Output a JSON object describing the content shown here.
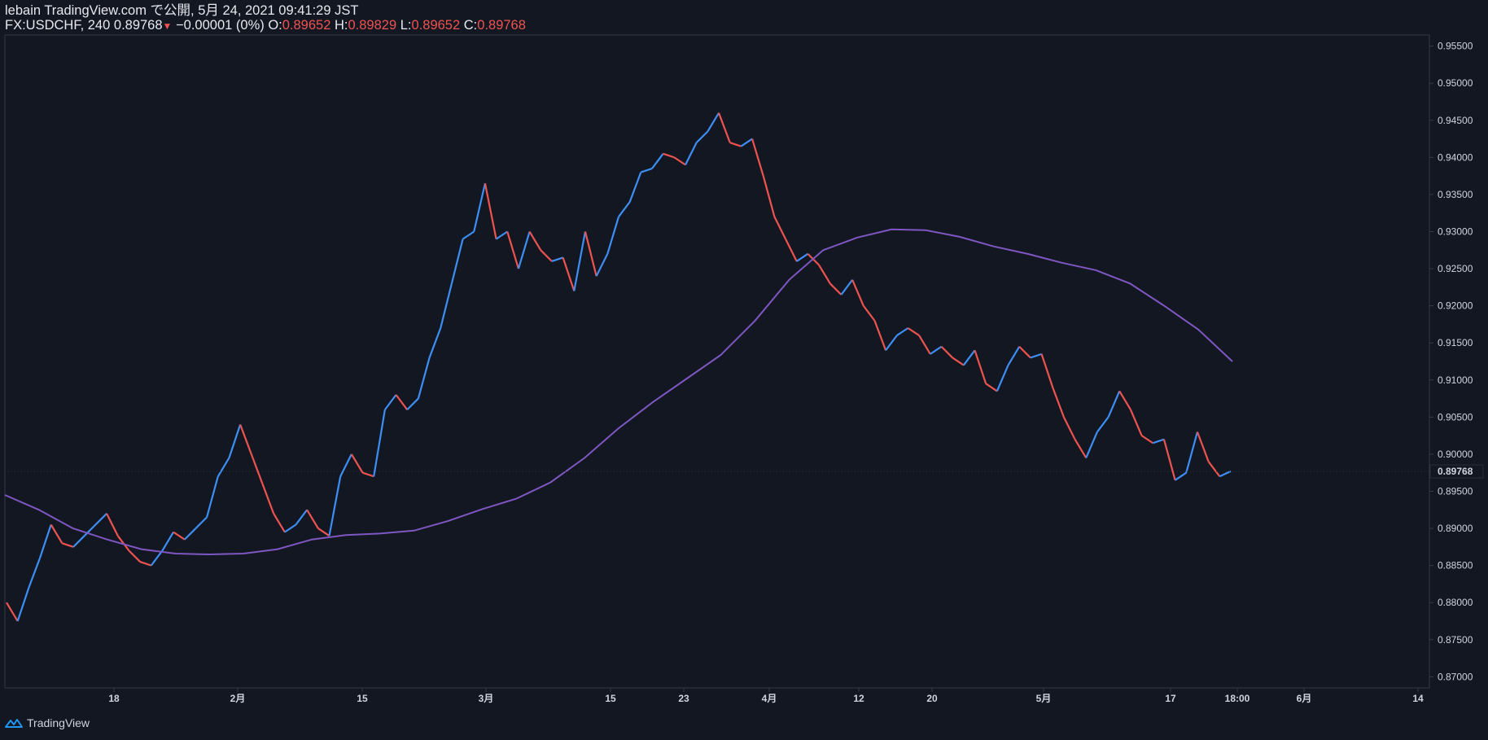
{
  "header": {
    "line1": "lebain TradingView.com で公開, 5月 24, 2021 09:41:29 JST",
    "symbol": "FX:USDCHF, 240",
    "last": "0.89768",
    "change": "−0.00001 (0%)",
    "o_label": "O:",
    "o_value": "0.89652",
    "h_label": "H:",
    "h_value": "0.89829",
    "l_label": "L:",
    "l_value": "0.89652",
    "c_label": "C:",
    "c_value": "0.89768"
  },
  "footer": {
    "brand": "TradingView"
  },
  "colors": {
    "background": "#131722",
    "up": "#2962ff",
    "up_alt": "#3d8ff5",
    "down": "#ef5350",
    "ma": "#7e57c2",
    "grid": "#363a45",
    "text": "#d1d4dc"
  },
  "chart_data": {
    "type": "line",
    "title": "",
    "series": [
      {
        "name": "",
        "values": [
          0.88,
          0.8775,
          0.882,
          0.886,
          0.8905,
          0.888,
          0.8875,
          0.889,
          0.8905,
          0.892,
          0.889,
          0.887,
          0.8855,
          0.885,
          0.887,
          0.8895,
          0.8885,
          0.89,
          0.8915,
          0.897,
          0.8995,
          0.904,
          0.9,
          0.896,
          0.892,
          0.8895,
          0.8905,
          0.8925,
          0.89,
          0.889,
          0.897,
          0.9,
          0.8975,
          0.897,
          0.906,
          0.908,
          0.906,
          0.9075,
          0.913,
          0.917,
          0.923,
          0.929,
          0.93,
          0.9365,
          0.929,
          0.93,
          0.925,
          0.93,
          0.9275,
          0.926,
          0.9265,
          0.922,
          0.93,
          0.924,
          0.927,
          0.932,
          0.934,
          0.938,
          0.9385,
          0.9405,
          0.94,
          0.939,
          0.942,
          0.9435,
          0.946,
          0.942,
          0.9415,
          0.9425,
          0.9375,
          0.932,
          0.929,
          0.926,
          0.927,
          0.9255,
          0.923,
          0.9215,
          0.9235,
          0.92,
          0.918,
          0.914,
          0.916,
          0.917,
          0.916,
          0.9135,
          0.9145,
          0.913,
          0.912,
          0.914,
          0.9095,
          0.9085,
          0.912,
          0.9145,
          0.913,
          0.9135,
          0.909,
          0.905,
          0.902,
          0.8995,
          0.903,
          0.905,
          0.9085,
          0.906,
          0.9025,
          0.9015,
          0.902,
          0.8965,
          0.8975,
          0.903,
          0.899,
          0.897,
          0.8977
        ]
      },
      {
        "name": "",
        "values": [
          0.8945,
          0.8925,
          0.89,
          0.8885,
          0.8872,
          0.8866,
          0.8865,
          0.8866,
          0.8872,
          0.8885,
          0.8891,
          0.8893,
          0.8897,
          0.891,
          0.8926,
          0.894,
          0.8962,
          0.8995,
          0.9035,
          0.907,
          0.9102,
          0.9134,
          0.918,
          0.9235,
          0.9275,
          0.9292,
          0.9303,
          0.9302,
          0.9293,
          0.928,
          0.927,
          0.9258,
          0.9248,
          0.923,
          0.92,
          0.9168,
          0.9125
        ]
      }
    ],
    "y_axis": {
      "ticks": [
        "0.87000",
        "0.87500",
        "0.88000",
        "0.88500",
        "0.89000",
        "0.89500",
        "0.90000",
        "0.90500",
        "0.91000",
        "0.91500",
        "0.92000",
        "0.92500",
        "0.93000",
        "0.93500",
        "0.94000",
        "0.94500",
        "0.95000",
        "0.95500"
      ],
      "range": [
        0.8685,
        0.9565
      ],
      "last_price_label": "0.89768"
    },
    "x_axis": {
      "ticks": [
        "18",
        "2月",
        "15",
        "3月",
        "15",
        "23",
        "4月",
        "12",
        "20",
        "5月",
        "17",
        "18:00",
        "6月",
        "14"
      ]
    },
    "grid": false,
    "legend": "none"
  }
}
